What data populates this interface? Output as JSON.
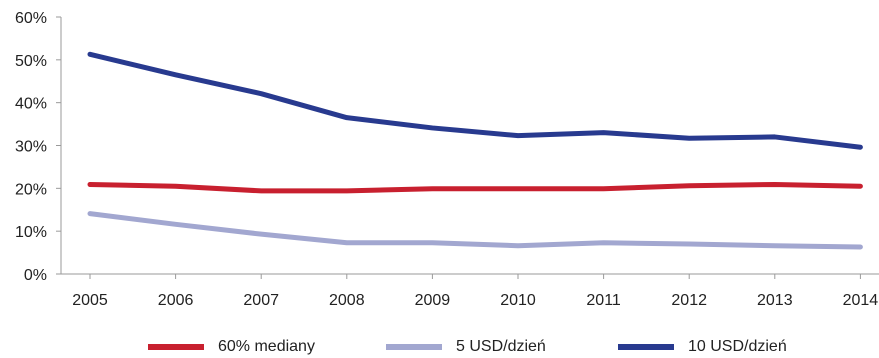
{
  "chart_data": {
    "type": "line",
    "categories": [
      "2005",
      "2006",
      "2007",
      "2008",
      "2009",
      "2010",
      "2011",
      "2012",
      "2013",
      "2014"
    ],
    "ylim": [
      0,
      60
    ],
    "yticks": [
      0,
      10,
      20,
      30,
      40,
      50,
      60
    ],
    "ytick_labels": [
      "0%",
      "10%",
      "20%",
      "30%",
      "40%",
      "50%",
      "60%"
    ],
    "grid": false,
    "legend_position": "bottom",
    "series": [
      {
        "name": "60% mediany",
        "color": "#c8202f",
        "values": [
          20.9,
          20.5,
          19.4,
          19.4,
          19.9,
          19.9,
          19.9,
          20.6,
          20.9,
          20.5
        ]
      },
      {
        "name": "5 USD/dzień",
        "color": "#a2a7d0",
        "values": [
          14.1,
          11.6,
          9.3,
          7.3,
          7.3,
          6.6,
          7.3,
          7.0,
          6.6,
          6.3
        ]
      },
      {
        "name": "10 USD/dzień",
        "color": "#283a8f",
        "values": [
          51.3,
          46.5,
          42.1,
          36.5,
          34.1,
          32.3,
          33.0,
          31.7,
          32.0,
          29.6
        ]
      }
    ]
  }
}
